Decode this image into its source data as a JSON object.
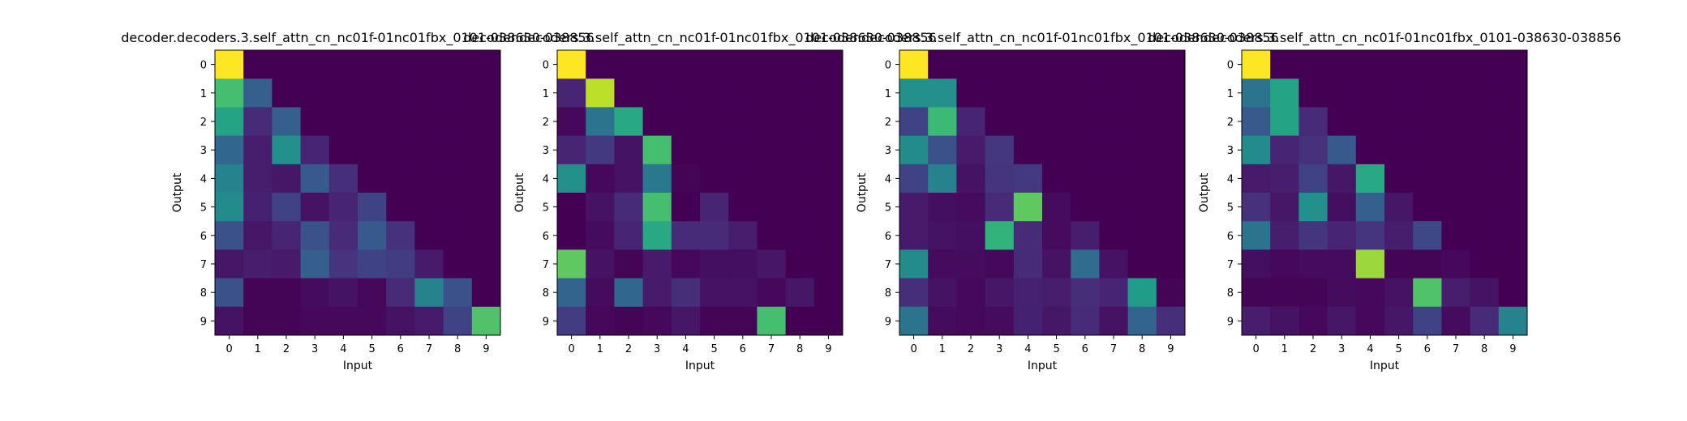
{
  "figure": {
    "background": "#ffffff"
  },
  "colormap": {
    "name": "viridis",
    "stops": [
      "#440154",
      "#482878",
      "#3e4989",
      "#31688e",
      "#26828e",
      "#1f9e89",
      "#35b779",
      "#6ece58",
      "#b5de2b",
      "#fde725"
    ]
  },
  "chart_data": [
    {
      "type": "heatmap",
      "title": "decoder.decoders.3.self_attn_cn_nc01f-01nc01fbx_0101-038630-038856",
      "xlabel": "Input",
      "ylabel": "Output",
      "xticks": [
        "0",
        "1",
        "2",
        "3",
        "4",
        "5",
        "6",
        "7",
        "8",
        "9"
      ],
      "yticks": [
        "0",
        "1",
        "2",
        "3",
        "4",
        "5",
        "6",
        "7",
        "8",
        "9"
      ],
      "vrange": [
        0,
        1
      ],
      "values": [
        [
          1.0,
          0.0,
          0.0,
          0.0,
          0.0,
          0.0,
          0.0,
          0.0,
          0.0,
          0.0
        ],
        [
          0.7,
          0.3,
          0.0,
          0.0,
          0.0,
          0.0,
          0.0,
          0.0,
          0.0,
          0.0
        ],
        [
          0.58,
          0.12,
          0.3,
          0.0,
          0.0,
          0.0,
          0.0,
          0.0,
          0.0,
          0.0
        ],
        [
          0.33,
          0.08,
          0.5,
          0.1,
          0.0,
          0.0,
          0.0,
          0.0,
          0.0,
          0.0
        ],
        [
          0.45,
          0.08,
          0.06,
          0.28,
          0.13,
          0.0,
          0.0,
          0.0,
          0.0,
          0.0
        ],
        [
          0.48,
          0.09,
          0.2,
          0.05,
          0.1,
          0.2,
          0.0,
          0.0,
          0.0,
          0.0
        ],
        [
          0.25,
          0.06,
          0.1,
          0.25,
          0.12,
          0.28,
          0.14,
          0.0,
          0.0,
          0.0
        ],
        [
          0.06,
          0.08,
          0.07,
          0.3,
          0.15,
          0.2,
          0.18,
          0.07,
          0.0,
          0.0
        ],
        [
          0.25,
          0.01,
          0.01,
          0.03,
          0.05,
          0.02,
          0.12,
          0.45,
          0.25,
          0.0
        ],
        [
          0.05,
          0.01,
          0.01,
          0.02,
          0.02,
          0.02,
          0.05,
          0.07,
          0.2,
          0.72
        ]
      ]
    },
    {
      "type": "heatmap",
      "title": "decoder.decoders.3.self_attn_cn_nc01f-01nc01fbx_0101-038630-038856",
      "xlabel": "Input",
      "ylabel": "Output",
      "xticks": [
        "0",
        "1",
        "2",
        "3",
        "4",
        "5",
        "6",
        "7",
        "8",
        "9"
      ],
      "yticks": [
        "0",
        "1",
        "2",
        "3",
        "4",
        "5",
        "6",
        "7",
        "8",
        "9"
      ],
      "vrange": [
        0,
        1
      ],
      "values": [
        [
          1.0,
          0.0,
          0.0,
          0.0,
          0.0,
          0.0,
          0.0,
          0.0,
          0.0,
          0.0
        ],
        [
          0.1,
          0.9,
          0.0,
          0.0,
          0.0,
          0.0,
          0.0,
          0.0,
          0.0,
          0.0
        ],
        [
          0.02,
          0.38,
          0.6,
          0.0,
          0.0,
          0.0,
          0.0,
          0.0,
          0.0,
          0.0
        ],
        [
          0.1,
          0.17,
          0.05,
          0.7,
          0.0,
          0.0,
          0.0,
          0.0,
          0.0,
          0.0
        ],
        [
          0.5,
          0.02,
          0.05,
          0.4,
          0.01,
          0.0,
          0.0,
          0.0,
          0.0,
          0.0
        ],
        [
          0.0,
          0.05,
          0.12,
          0.7,
          0.0,
          0.1,
          0.0,
          0.0,
          0.0,
          0.0
        ],
        [
          0.0,
          0.03,
          0.1,
          0.6,
          0.12,
          0.12,
          0.08,
          0.0,
          0.0,
          0.0
        ],
        [
          0.75,
          0.05,
          0.01,
          0.07,
          0.02,
          0.04,
          0.04,
          0.06,
          0.0,
          0.0
        ],
        [
          0.32,
          0.03,
          0.33,
          0.07,
          0.13,
          0.05,
          0.05,
          0.02,
          0.06,
          0.0
        ],
        [
          0.18,
          0.02,
          0.01,
          0.02,
          0.06,
          0.01,
          0.01,
          0.7,
          0.0,
          0.0
        ]
      ]
    },
    {
      "type": "heatmap",
      "title": "decoder.decoders.3.self_attn_cn_nc01f-01nc01fbx_0101-038630-038856",
      "xlabel": "Input",
      "ylabel": "Output",
      "xticks": [
        "0",
        "1",
        "2",
        "3",
        "4",
        "5",
        "6",
        "7",
        "8",
        "9"
      ],
      "yticks": [
        "0",
        "1",
        "2",
        "3",
        "4",
        "5",
        "6",
        "7",
        "8",
        "9"
      ],
      "vrange": [
        0,
        1
      ],
      "values": [
        [
          1.0,
          0.0,
          0.0,
          0.0,
          0.0,
          0.0,
          0.0,
          0.0,
          0.0,
          0.0
        ],
        [
          0.5,
          0.5,
          0.0,
          0.0,
          0.0,
          0.0,
          0.0,
          0.0,
          0.0,
          0.0
        ],
        [
          0.2,
          0.68,
          0.1,
          0.0,
          0.0,
          0.0,
          0.0,
          0.0,
          0.0,
          0.0
        ],
        [
          0.48,
          0.25,
          0.07,
          0.16,
          0.0,
          0.0,
          0.0,
          0.0,
          0.0,
          0.0
        ],
        [
          0.2,
          0.45,
          0.05,
          0.15,
          0.17,
          0.0,
          0.0,
          0.0,
          0.0,
          0.0
        ],
        [
          0.07,
          0.04,
          0.03,
          0.12,
          0.75,
          0.03,
          0.0,
          0.0,
          0.0,
          0.0
        ],
        [
          0.07,
          0.05,
          0.04,
          0.65,
          0.12,
          0.03,
          0.08,
          0.0,
          0.0,
          0.0
        ],
        [
          0.48,
          0.03,
          0.03,
          0.02,
          0.12,
          0.05,
          0.35,
          0.05,
          0.0,
          0.0
        ],
        [
          0.13,
          0.05,
          0.02,
          0.06,
          0.09,
          0.08,
          0.13,
          0.1,
          0.55,
          0.01
        ],
        [
          0.38,
          0.03,
          0.02,
          0.03,
          0.09,
          0.06,
          0.12,
          0.05,
          0.32,
          0.13
        ]
      ]
    },
    {
      "type": "heatmap",
      "title": "decoder.decoders.3.self_attn_cn_nc01f-01nc01fbx_0101-038630-038856",
      "xlabel": "Input",
      "ylabel": "Output",
      "xticks": [
        "0",
        "1",
        "2",
        "3",
        "4",
        "5",
        "6",
        "7",
        "8",
        "9"
      ],
      "yticks": [
        "0",
        "1",
        "2",
        "3",
        "4",
        "5",
        "6",
        "7",
        "8",
        "9"
      ],
      "vrange": [
        0,
        1
      ],
      "values": [
        [
          1.0,
          0.0,
          0.0,
          0.0,
          0.0,
          0.0,
          0.0,
          0.0,
          0.0,
          0.0
        ],
        [
          0.38,
          0.58,
          0.0,
          0.0,
          0.0,
          0.0,
          0.0,
          0.0,
          0.0,
          0.0
        ],
        [
          0.28,
          0.58,
          0.12,
          0.0,
          0.0,
          0.0,
          0.0,
          0.0,
          0.0,
          0.0
        ],
        [
          0.48,
          0.1,
          0.14,
          0.28,
          0.0,
          0.0,
          0.0,
          0.0,
          0.0,
          0.0
        ],
        [
          0.07,
          0.08,
          0.2,
          0.06,
          0.6,
          0.0,
          0.0,
          0.0,
          0.0,
          0.0
        ],
        [
          0.14,
          0.06,
          0.5,
          0.04,
          0.3,
          0.06,
          0.0,
          0.0,
          0.0,
          0.0
        ],
        [
          0.38,
          0.08,
          0.15,
          0.1,
          0.15,
          0.08,
          0.22,
          0.0,
          0.0,
          0.0
        ],
        [
          0.04,
          0.02,
          0.03,
          0.03,
          0.85,
          0.01,
          0.01,
          0.02,
          0.0,
          0.0
        ],
        [
          0.01,
          0.01,
          0.01,
          0.03,
          0.02,
          0.05,
          0.72,
          0.08,
          0.05,
          0.0
        ],
        [
          0.08,
          0.05,
          0.02,
          0.06,
          0.02,
          0.06,
          0.2,
          0.03,
          0.12,
          0.45
        ]
      ]
    }
  ]
}
